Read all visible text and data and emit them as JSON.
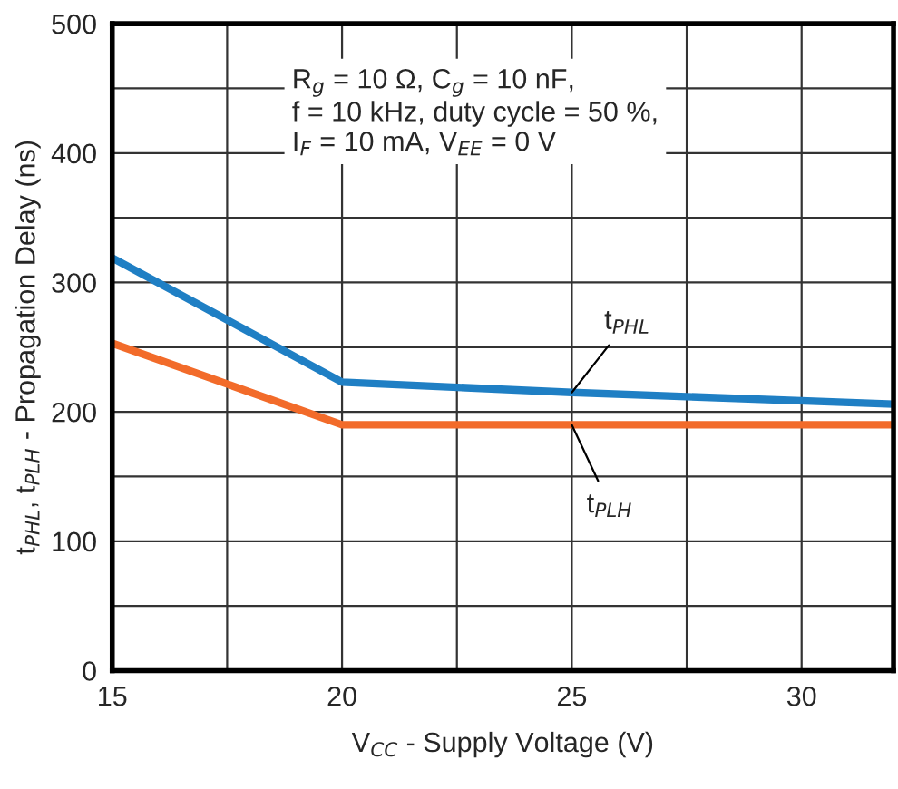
{
  "chart_data": {
    "type": "line",
    "xlabel": "V$_{CC}$ - Supply Voltage (V)",
    "ylabel": "t$_{PHL}$, t$_{PLH}$ - Propagation Delay (ns)",
    "annotations": [
      "R$_{g}$ = 10 Ω, C$_{g}$ = 10 nF,\nf = 10 kHz, duty cycle = 50 %,\nI$_{F}$ = 10 mA, V$_{EE}$ = 0 V"
    ],
    "x": [
      15,
      20,
      25,
      32
    ],
    "series": [
      {
        "name": "t$_{PHL}$",
        "color": "#1f7fc4",
        "values": [
          319,
          223,
          215,
          206
        ]
      },
      {
        "name": "t$_{PLH}$",
        "color": "#f26b2a",
        "values": [
          253,
          190,
          190,
          190
        ]
      }
    ],
    "xlim": [
      15,
      32
    ],
    "xticks": [
      15,
      {
        "value": 17.5,
        "label": null
      },
      20,
      {
        "value": 22.5,
        "label": null
      },
      25,
      {
        "value": 27.5,
        "label": null
      },
      30
    ],
    "ylim": [
      0,
      500
    ],
    "yticks": [
      0,
      {
        "value": 50,
        "label": null
      },
      100,
      {
        "value": 150,
        "label": null
      },
      200,
      {
        "value": 250,
        "label": null
      },
      300,
      {
        "value": 350,
        "label": null
      },
      400,
      {
        "value": 450,
        "label": null
      },
      500
    ],
    "grid": true,
    "legend": false,
    "marker": "none",
    "line_style": "solid"
  }
}
